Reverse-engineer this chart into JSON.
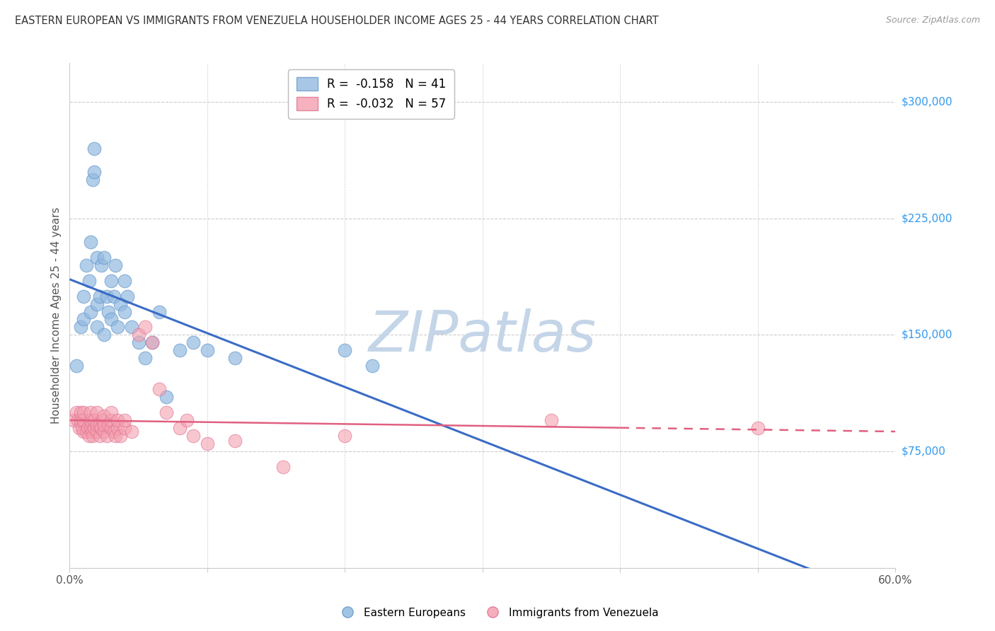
{
  "title": "EASTERN EUROPEAN VS IMMIGRANTS FROM VENEZUELA HOUSEHOLDER INCOME AGES 25 - 44 YEARS CORRELATION CHART",
  "source": "Source: ZipAtlas.com",
  "ylabel": "Householder Income Ages 25 - 44 years",
  "ytick_labels": [
    "$75,000",
    "$150,000",
    "$225,000",
    "$300,000"
  ],
  "ytick_values": [
    75000,
    150000,
    225000,
    300000
  ],
  "ymin": 0,
  "ymax": 325000,
  "xmin": 0.0,
  "xmax": 0.6,
  "legend_blue_r": "-0.158",
  "legend_blue_n": "41",
  "legend_pink_r": "-0.032",
  "legend_pink_n": "57",
  "blue_label": "Eastern Europeans",
  "pink_label": "Immigrants from Venezuela",
  "blue_color": "#92BAE0",
  "pink_color": "#F4A0B0",
  "blue_edge_color": "#6699CC",
  "pink_edge_color": "#E07090",
  "blue_line_color": "#3B6CC5",
  "pink_line_color": "#E06080",
  "watermark": "ZIPatlas",
  "watermark_color": "#C5D5E8",
  "grid_color": "#CCCCCC",
  "right_axis_label_color": "#3399EE",
  "title_color": "#333333",
  "blue_scatter_x": [
    0.005,
    0.008,
    0.01,
    0.01,
    0.012,
    0.014,
    0.015,
    0.015,
    0.017,
    0.018,
    0.018,
    0.02,
    0.02,
    0.02,
    0.022,
    0.023,
    0.025,
    0.025,
    0.027,
    0.028,
    0.03,
    0.03,
    0.032,
    0.033,
    0.035,
    0.037,
    0.04,
    0.04,
    0.042,
    0.045,
    0.05,
    0.055,
    0.06,
    0.065,
    0.07,
    0.08,
    0.09,
    0.1,
    0.12,
    0.2,
    0.22
  ],
  "blue_scatter_y": [
    130000,
    155000,
    160000,
    175000,
    195000,
    185000,
    165000,
    210000,
    250000,
    255000,
    270000,
    155000,
    170000,
    200000,
    175000,
    195000,
    150000,
    200000,
    175000,
    165000,
    160000,
    185000,
    175000,
    195000,
    155000,
    170000,
    165000,
    185000,
    175000,
    155000,
    145000,
    135000,
    145000,
    165000,
    110000,
    140000,
    145000,
    140000,
    135000,
    140000,
    130000
  ],
  "pink_scatter_x": [
    0.003,
    0.005,
    0.006,
    0.007,
    0.008,
    0.008,
    0.009,
    0.01,
    0.01,
    0.01,
    0.012,
    0.013,
    0.014,
    0.015,
    0.015,
    0.015,
    0.016,
    0.017,
    0.018,
    0.018,
    0.02,
    0.02,
    0.02,
    0.022,
    0.022,
    0.023,
    0.024,
    0.025,
    0.025,
    0.025,
    0.027,
    0.028,
    0.03,
    0.03,
    0.03,
    0.032,
    0.033,
    0.035,
    0.035,
    0.037,
    0.04,
    0.04,
    0.045,
    0.05,
    0.055,
    0.06,
    0.065,
    0.07,
    0.08,
    0.085,
    0.09,
    0.1,
    0.12,
    0.155,
    0.2,
    0.35,
    0.5
  ],
  "pink_scatter_y": [
    95000,
    100000,
    95000,
    90000,
    95000,
    100000,
    90000,
    88000,
    95000,
    100000,
    88000,
    90000,
    85000,
    90000,
    95000,
    100000,
    88000,
    85000,
    90000,
    95000,
    88000,
    92000,
    100000,
    85000,
    92000,
    90000,
    95000,
    88000,
    92000,
    98000,
    85000,
    92000,
    90000,
    95000,
    100000,
    88000,
    85000,
    90000,
    95000,
    85000,
    90000,
    95000,
    88000,
    150000,
    155000,
    145000,
    115000,
    100000,
    90000,
    95000,
    85000,
    80000,
    82000,
    65000,
    85000,
    95000,
    90000
  ]
}
